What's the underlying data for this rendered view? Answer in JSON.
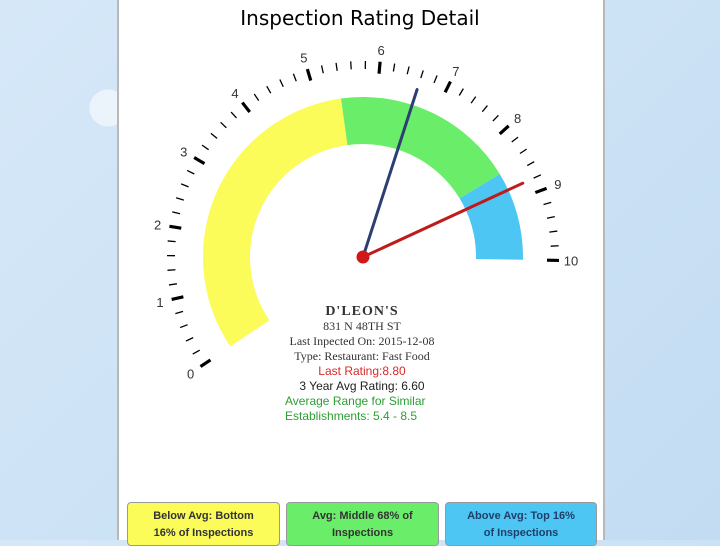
{
  "page": {
    "title": "Inspection Rating Detail"
  },
  "establishment": {
    "name": "D'LEON'S",
    "address": "831 N 48TH ST",
    "last_inspected": "Last Inpected On: 2015-12-08",
    "type": "Type: Restaurant: Fast Food",
    "last_rating": "Last Rating:8.80",
    "three_year_avg": "3 Year Avg Rating: 6.60",
    "avg_range_line1": "Average Range for Similar",
    "avg_range_line2": "Establishments: 5.4 - 8.5"
  },
  "legend": [
    {
      "line1": "Below Avg: Bottom",
      "line2": "16% of Inspections",
      "color": "#fbfb5a"
    },
    {
      "line1": "Avg: Middle 68% of",
      "line2": "Inspections",
      "color": "#6aed69"
    },
    {
      "line1": "Above Avg: Top 16%",
      "line2": "of Inspections",
      "color": "#4ec6f3"
    }
  ],
  "chart_data": {
    "type": "gauge",
    "min": 0,
    "max": 10,
    "tick_labels": [
      "0",
      "1",
      "2",
      "3",
      "4",
      "5",
      "6",
      "7",
      "8",
      "9",
      "10"
    ],
    "bands": [
      {
        "from": 0,
        "to": 5.4,
        "color": "#fbfb5a"
      },
      {
        "from": 5.4,
        "to": 8.5,
        "color": "#6aed69"
      },
      {
        "from": 8.5,
        "to": 10,
        "color": "#4ec6f3"
      }
    ],
    "needles": [
      {
        "value": 6.6,
        "color": "#2c3e73"
      },
      {
        "value": 8.8,
        "color": "#c01b1b"
      }
    ],
    "needle_hub_color": "#d01818",
    "tick_color": "#000000"
  }
}
